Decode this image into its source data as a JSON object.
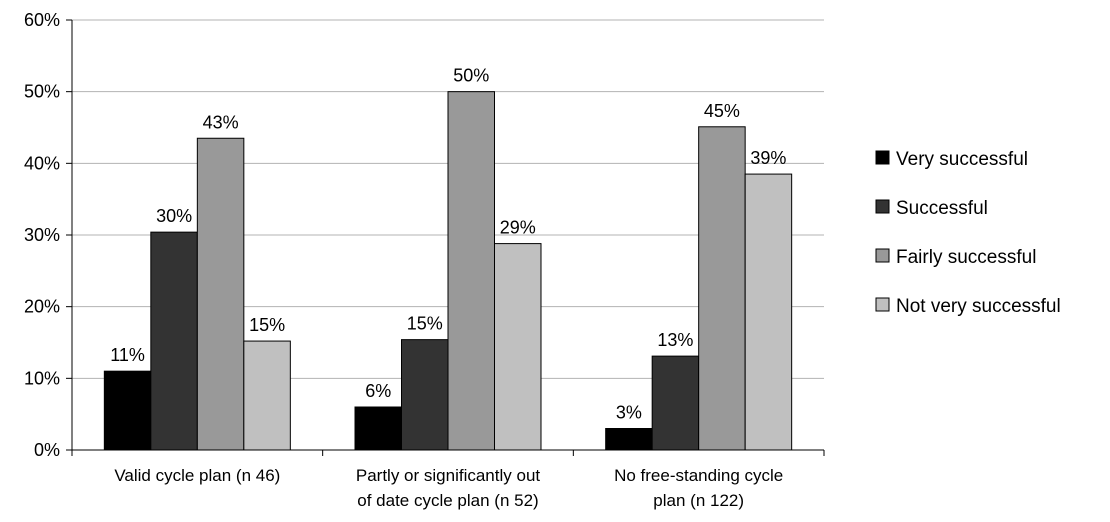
{
  "chart_data": {
    "type": "bar",
    "title": "",
    "xlabel": "",
    "ylabel": "",
    "ylim": [
      0,
      60
    ],
    "yticks": [
      "0%",
      "10%",
      "20%",
      "30%",
      "40%",
      "50%",
      "60%"
    ],
    "grid": true,
    "legend_position": "right",
    "categories": [
      [
        "Valid cycle plan (n 46)"
      ],
      [
        "Partly or significantly out",
        "of date cycle plan (n 52)"
      ],
      [
        "No free-standing cycle",
        "plan (n 122)"
      ]
    ],
    "series": [
      {
        "name": "Very successful",
        "color": "#000000",
        "values": [
          11,
          6,
          3
        ],
        "labels": [
          "11%",
          "6%",
          "3%"
        ]
      },
      {
        "name": "Successful",
        "color": "#333333",
        "values": [
          30.4,
          15.4,
          13.1
        ],
        "labels": [
          "30%",
          "15%",
          "13%"
        ]
      },
      {
        "name": "Fairly successful",
        "color": "#999999",
        "values": [
          43.5,
          50,
          45.1
        ],
        "labels": [
          "43%",
          "50%",
          "45%"
        ]
      },
      {
        "name": "Not very successful",
        "color": "#c0c0c0",
        "values": [
          15.2,
          28.8,
          38.5
        ],
        "labels": [
          "15%",
          "29%",
          "39%"
        ]
      }
    ]
  }
}
